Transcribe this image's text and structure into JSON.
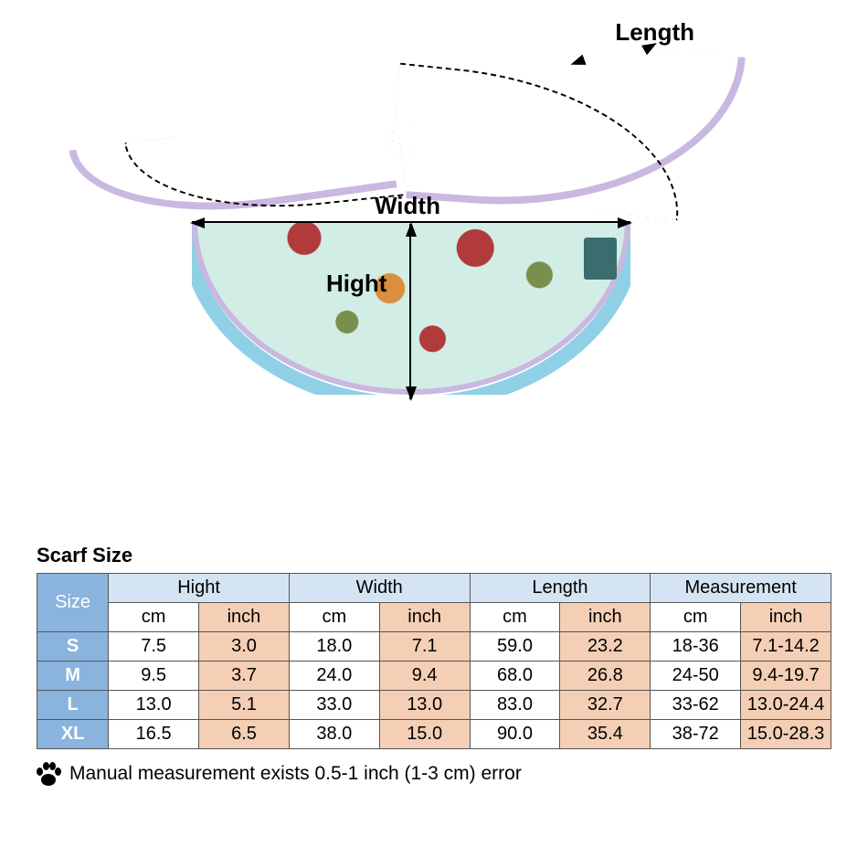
{
  "diagram": {
    "length_label": "Length",
    "width_label": "Width",
    "height_label": "Hight",
    "strap_color": "#c9b8e0",
    "frill_color": "#8fd0e6",
    "fabric_base": "#d2ece6",
    "flower_red": "#b13a3a",
    "flower_orange": "#d98f3e",
    "leaf_green": "#7a8f4d",
    "tag_color": "#3a6e6e"
  },
  "table": {
    "title": "Scarf Size",
    "title_fontsize": 22,
    "body_fontsize": 20,
    "border_color": "#555555",
    "colors": {
      "header_size_bg": "#8ab4dd",
      "header_size_fg": "#ffffff",
      "header_group_bg": "#d5e4f2",
      "cm_bg": "#ffffff",
      "inch_bg": "#f4cfb5"
    },
    "size_header": "Size",
    "groups": [
      "Hight",
      "Width",
      "Length",
      "Measurement"
    ],
    "units": {
      "cm": "cm",
      "inch": "inch"
    },
    "rows": [
      {
        "size": "S",
        "hight_cm": "7.5",
        "hight_in": "3.0",
        "width_cm": "18.0",
        "width_in": "7.1",
        "length_cm": "59.0",
        "length_in": "23.2",
        "meas_cm": "18-36",
        "meas_in": "7.1-14.2"
      },
      {
        "size": "M",
        "hight_cm": "9.5",
        "hight_in": "3.7",
        "width_cm": "24.0",
        "width_in": "9.4",
        "length_cm": "68.0",
        "length_in": "26.8",
        "meas_cm": "24-50",
        "meas_in": "9.4-19.7"
      },
      {
        "size": "L",
        "hight_cm": "13.0",
        "hight_in": "5.1",
        "width_cm": "33.0",
        "width_in": "13.0",
        "length_cm": "83.0",
        "length_in": "32.7",
        "meas_cm": "33-62",
        "meas_in": "13.0-24.4"
      },
      {
        "size": "XL",
        "hight_cm": "16.5",
        "hight_in": "6.5",
        "width_cm": "38.0",
        "width_in": "15.0",
        "length_cm": "90.0",
        "length_in": "35.4",
        "meas_cm": "38-72",
        "meas_in": "15.0-28.3"
      }
    ]
  },
  "footnote": {
    "text": "Manual measurement exists 0.5-1 inch (1-3 cm) error",
    "fontsize": 21
  }
}
